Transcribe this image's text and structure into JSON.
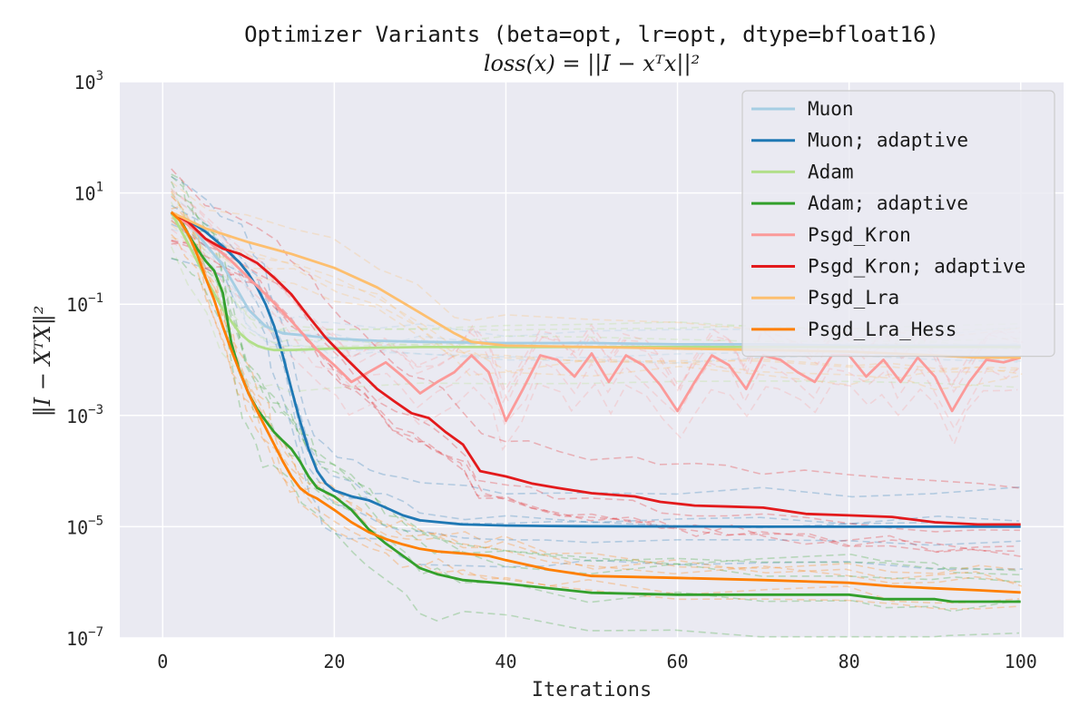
{
  "chart_data": {
    "type": "line",
    "title": "Optimizer Variants (beta=opt, lr=opt, dtype=bfloat16)",
    "subtitle": "loss(x) = ||I − xᵀx||²",
    "xlabel": "Iterations",
    "ylabel": "‖I − XᵀX‖²",
    "xlim": [
      -5,
      105
    ],
    "ylim": [
      1e-07,
      1000
    ],
    "yscale": "log",
    "grid": true,
    "background": "#eaeaf2",
    "legend_position": "top-right",
    "x_ticks": [
      0,
      20,
      40,
      60,
      80,
      100
    ],
    "y_ticks": [
      {
        "value": 1000,
        "base": "10",
        "exp": "3"
      },
      {
        "value": 10,
        "base": "10",
        "exp": "1"
      },
      {
        "value": 0.1,
        "base": "10",
        "exp": "−1"
      },
      {
        "value": 0.001,
        "base": "10",
        "exp": "−3"
      },
      {
        "value": 1e-05,
        "base": "10",
        "exp": "−5"
      },
      {
        "value": 1e-07,
        "base": "10",
        "exp": "−7"
      }
    ],
    "series": [
      {
        "name": "Muon",
        "color": "#a6cee3",
        "x": [
          1,
          3,
          5,
          7,
          9,
          10,
          12,
          14,
          16,
          18,
          20,
          25,
          30,
          40,
          50,
          60,
          70,
          80,
          90,
          100
        ],
        "y": [
          4.5,
          3,
          1.2,
          0.5,
          0.15,
          0.08,
          0.04,
          0.03,
          0.028,
          0.026,
          0.024,
          0.022,
          0.021,
          0.02,
          0.02,
          0.019,
          0.019,
          0.018,
          0.018,
          0.018
        ]
      },
      {
        "name": "Muon; adaptive",
        "color": "#1f78b4",
        "x": [
          1,
          3,
          5,
          7,
          9,
          10,
          11,
          12,
          13,
          14,
          15,
          16,
          17,
          18,
          19,
          20,
          22,
          24,
          26,
          28,
          30,
          35,
          40,
          45,
          50,
          60,
          70,
          80,
          90,
          100
        ],
        "y": [
          4.2,
          3.2,
          2.0,
          1.1,
          0.55,
          0.35,
          0.2,
          0.1,
          0.04,
          0.012,
          0.003,
          0.0008,
          0.00025,
          0.0001,
          6e-05,
          4.5e-05,
          3.5e-05,
          3e-05,
          2.2e-05,
          1.6e-05,
          1.3e-05,
          1.1e-05,
          1.05e-05,
          1.03e-05,
          1.02e-05,
          1.01e-05,
          1e-05,
          1e-05,
          1e-05,
          1e-05
        ]
      },
      {
        "name": "Adam",
        "color": "#b2df8a",
        "x": [
          1,
          3,
          5,
          7,
          9,
          10,
          11,
          12,
          13,
          15,
          20,
          30,
          40,
          50,
          60,
          70,
          80,
          90,
          100
        ],
        "y": [
          4.5,
          1.2,
          0.3,
          0.08,
          0.03,
          0.022,
          0.018,
          0.016,
          0.015,
          0.015,
          0.016,
          0.017,
          0.017,
          0.017,
          0.017,
          0.017,
          0.017,
          0.017,
          0.017
        ]
      },
      {
        "name": "Adam; adaptive",
        "color": "#33a02c",
        "x": [
          1,
          2,
          3,
          4,
          5,
          6,
          7,
          8,
          9,
          10,
          11,
          12,
          13,
          14,
          15,
          16,
          17,
          18,
          20,
          22,
          24,
          26,
          28,
          30,
          32,
          35,
          40,
          50,
          60,
          70,
          80,
          84,
          90,
          92,
          100
        ],
        "y": [
          4.5,
          3.5,
          1.8,
          1.0,
          0.6,
          0.4,
          0.16,
          0.02,
          0.006,
          0.0025,
          0.0013,
          0.0008,
          0.0005,
          0.00035,
          0.00025,
          0.00015,
          8e-05,
          5e-05,
          3.5e-05,
          2e-05,
          9e-06,
          5e-06,
          3e-06,
          1.8e-06,
          1.4e-06,
          1.1e-06,
          9.5e-07,
          6.5e-07,
          6e-07,
          6e-07,
          6e-07,
          5e-07,
          5e-07,
          4.5e-07,
          4.5e-07
        ]
      },
      {
        "name": "Psgd_Kron",
        "color": "#fb9a99",
        "x": [
          1,
          4,
          8,
          12,
          15,
          18,
          20,
          22,
          24,
          26,
          28,
          30,
          32,
          34,
          36,
          38,
          40,
          42,
          44,
          46,
          48,
          50,
          52,
          54,
          56,
          58,
          60,
          62,
          64,
          66,
          68,
          70,
          72,
          74,
          76,
          78,
          80,
          82,
          84,
          86,
          88,
          90,
          92,
          94,
          96,
          98,
          100
        ],
        "y": [
          4.5,
          2,
          0.6,
          0.15,
          0.05,
          0.015,
          0.008,
          0.004,
          0.006,
          0.009,
          0.005,
          0.0025,
          0.004,
          0.006,
          0.012,
          0.006,
          0.0008,
          0.003,
          0.012,
          0.01,
          0.005,
          0.013,
          0.004,
          0.012,
          0.008,
          0.0035,
          0.0012,
          0.004,
          0.012,
          0.008,
          0.003,
          0.012,
          0.01,
          0.006,
          0.004,
          0.012,
          0.012,
          0.005,
          0.01,
          0.004,
          0.011,
          0.005,
          0.0012,
          0.004,
          0.01,
          0.009,
          0.011
        ]
      },
      {
        "name": "Psgd_Kron; adaptive",
        "color": "#e31a1c",
        "x": [
          1,
          3,
          5,
          7,
          9,
          11,
          13,
          15,
          17,
          19,
          21,
          23,
          25,
          27,
          29,
          31,
          33,
          35,
          37,
          40,
          43,
          46,
          50,
          55,
          58,
          62,
          66,
          70,
          75,
          80,
          85,
          90,
          95,
          100
        ],
        "y": [
          4.5,
          3.0,
          1.5,
          1.0,
          0.8,
          0.55,
          0.3,
          0.15,
          0.06,
          0.025,
          0.012,
          0.006,
          0.003,
          0.0018,
          0.0011,
          0.0009,
          0.0005,
          0.0003,
          0.0001,
          8e-05,
          6e-05,
          5e-05,
          4e-05,
          3.5e-05,
          2.8e-05,
          2.4e-05,
          2.3e-05,
          2.2e-05,
          1.7e-05,
          1.6e-05,
          1.5e-05,
          1.2e-05,
          1.1e-05,
          1.1e-05
        ]
      },
      {
        "name": "Psgd_Lra",
        "color": "#fdbf6f",
        "x": [
          1,
          5,
          10,
          15,
          20,
          25,
          30,
          34,
          36,
          40,
          50,
          60,
          70,
          80,
          85,
          90,
          95,
          100
        ],
        "y": [
          4.5,
          2.3,
          1.3,
          0.8,
          0.45,
          0.2,
          0.07,
          0.03,
          0.021,
          0.018,
          0.017,
          0.016,
          0.015,
          0.014,
          0.013,
          0.012,
          0.011,
          0.011
        ]
      },
      {
        "name": "Psgd_Lra_Hess",
        "color": "#ff7f00",
        "x": [
          1,
          2,
          3,
          4,
          5,
          6,
          7,
          8,
          9,
          10,
          11,
          12,
          13,
          14,
          15,
          16,
          17,
          18,
          20,
          22,
          24,
          26,
          28,
          30,
          32,
          35,
          38,
          40,
          45,
          50,
          60,
          70,
          80,
          85,
          90,
          95,
          100
        ],
        "y": [
          4.5,
          3.2,
          1.8,
          0.8,
          0.3,
          0.12,
          0.04,
          0.015,
          0.006,
          0.0025,
          0.0012,
          0.0006,
          0.0003,
          0.00015,
          8e-05,
          5e-05,
          3.8e-05,
          3.2e-05,
          2e-05,
          1.2e-05,
          8e-06,
          6e-06,
          4.8e-06,
          4e-06,
          3.6e-06,
          3.3e-06,
          3e-06,
          2.5e-06,
          1.7e-06,
          1.3e-06,
          1.2e-06,
          1.1e-06,
          9.8e-07,
          8.5e-07,
          7.8e-07,
          7.2e-07,
          6.6e-07
        ]
      }
    ]
  }
}
